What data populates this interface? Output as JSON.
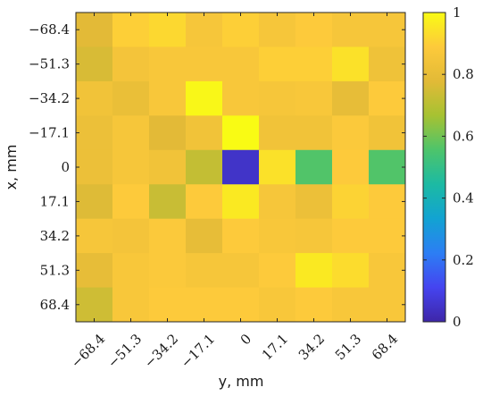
{
  "chart_data": {
    "type": "heatmap",
    "xlabel": "y, mm",
    "ylabel": "x, mm",
    "x_ticks": [
      "−68.4",
      "−51.3",
      "−34.2",
      "−17.1",
      "0",
      "17.1",
      "34.2",
      "51.3",
      "68.4"
    ],
    "y_ticks": [
      "−68.4",
      "−51.3",
      "−34.2",
      "−17.1",
      "0",
      "17.1",
      "34.2",
      "51.3",
      "68.4"
    ],
    "x": [
      -68.4,
      -51.3,
      -34.2,
      -17.1,
      0,
      17.1,
      34.2,
      51.3,
      68.4
    ],
    "y": [
      -68.4,
      -51.3,
      -34.2,
      -17.1,
      0,
      17.1,
      34.2,
      51.3,
      68.4
    ],
    "values": [
      [
        0.78,
        0.9,
        0.92,
        0.86,
        0.9,
        0.86,
        0.89,
        0.86,
        0.86
      ],
      [
        0.76,
        0.85,
        0.87,
        0.87,
        0.87,
        0.9,
        0.9,
        0.94,
        0.83
      ],
      [
        0.84,
        0.81,
        0.87,
        0.99,
        0.87,
        0.86,
        0.87,
        0.8,
        0.89
      ],
      [
        0.82,
        0.86,
        0.78,
        0.84,
        1.0,
        0.84,
        0.84,
        0.88,
        0.84
      ],
      [
        0.82,
        0.86,
        0.84,
        0.72,
        0.05,
        0.94,
        0.56,
        0.89,
        0.56
      ],
      [
        0.77,
        0.89,
        0.73,
        0.89,
        0.96,
        0.86,
        0.82,
        0.91,
        0.89
      ],
      [
        0.86,
        0.85,
        0.88,
        0.8,
        0.89,
        0.87,
        0.86,
        0.89,
        0.89
      ],
      [
        0.8,
        0.87,
        0.88,
        0.86,
        0.86,
        0.89,
        0.96,
        0.93,
        0.87
      ],
      [
        0.74,
        0.87,
        0.89,
        0.89,
        0.89,
        0.87,
        0.89,
        0.87,
        0.87
      ]
    ],
    "clim": [
      0,
      1
    ],
    "colorbar_ticks": [
      "0",
      "0.2",
      "0.4",
      "0.6",
      "0.8",
      "1"
    ],
    "colormap": "parula",
    "colormap_stops": [
      "#3e26a8",
      "#4544f0",
      "#2c7ef4",
      "#12a3d2",
      "#1cbaa3",
      "#4dc46b",
      "#a6c232",
      "#e2ba37",
      "#fdca3b",
      "#f9fb14"
    ],
    "grid": false
  }
}
